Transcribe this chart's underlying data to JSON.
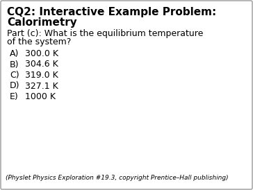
{
  "title_line1": "CQ2: Interactive Example Problem:",
  "title_line2": "Calorimetry",
  "question_line1": "Part (c): What is the equilibrium temperature",
  "question_line2": "of the system?",
  "choices": [
    [
      "A)",
      "300.0 K"
    ],
    [
      "B)",
      "304.6 K"
    ],
    [
      "C)",
      "319.0 K"
    ],
    [
      "D)",
      "327.1 K"
    ],
    [
      "E)",
      "1000 K"
    ]
  ],
  "footnote": "(Physlet Physics Exploration #19.3, copyright Prentice–Hall publishing)",
  "bg_color": "#ffffff",
  "border_color": "#999999",
  "title_fontsize": 11,
  "question_fontsize": 9,
  "choice_fontsize": 9,
  "footnote_fontsize": 6.5
}
